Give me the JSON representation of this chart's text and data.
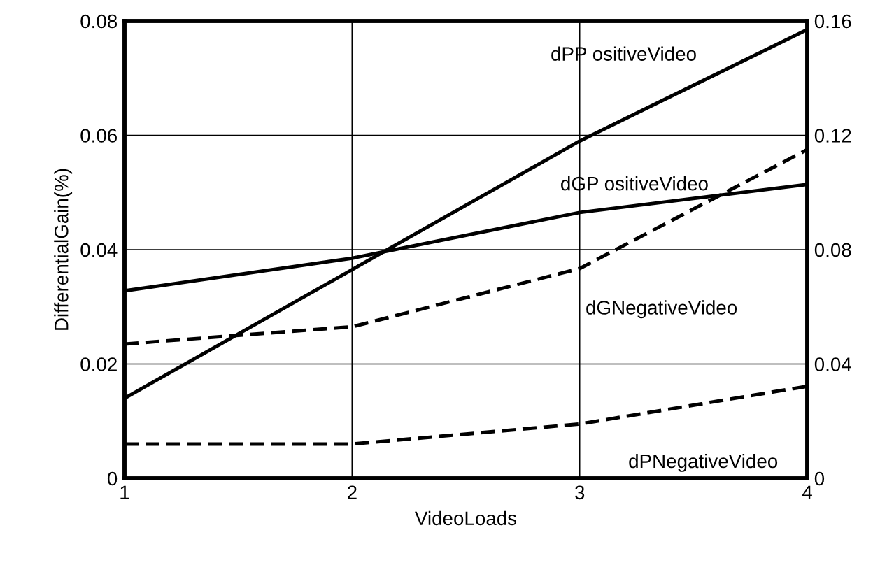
{
  "chart_data": {
    "type": "line",
    "xlabel": "VideoLoads",
    "ylabel": "DifferentialGain(%)",
    "x": [
      1,
      2,
      3,
      4
    ],
    "series": [
      {
        "name": "dPP ositiveVideo",
        "color": "#000000",
        "line_style": "solid",
        "values": [
          0.014,
          0.0365,
          0.059,
          0.0785
        ]
      },
      {
        "name": "dGP ositiveVideo",
        "color": "#000000",
        "line_style": "solid",
        "values": [
          0.0328,
          0.0385,
          0.0465,
          0.0514
        ]
      },
      {
        "name": "dGNegativeVideo",
        "color": "#000000",
        "line_style": "dashed",
        "values": [
          0.0235,
          0.0265,
          0.0367,
          0.0575
        ]
      },
      {
        "name": "dPNegativeVideo",
        "color": "#000000",
        "line_style": "dashed",
        "values": [
          0.006,
          0.006,
          0.0095,
          0.0161
        ]
      }
    ],
    "xlim": [
      1,
      4
    ],
    "xticks": [
      1,
      2,
      3,
      4
    ],
    "ylim": [
      0,
      0.08
    ],
    "yticks": [
      0,
      0.02,
      0.04,
      0.06,
      0.08
    ],
    "y2lim": [
      0,
      0.16
    ],
    "y2ticks": [
      0,
      0.04,
      0.08,
      0.12,
      0.16
    ],
    "grid": true,
    "legend": false,
    "marker": "none"
  }
}
